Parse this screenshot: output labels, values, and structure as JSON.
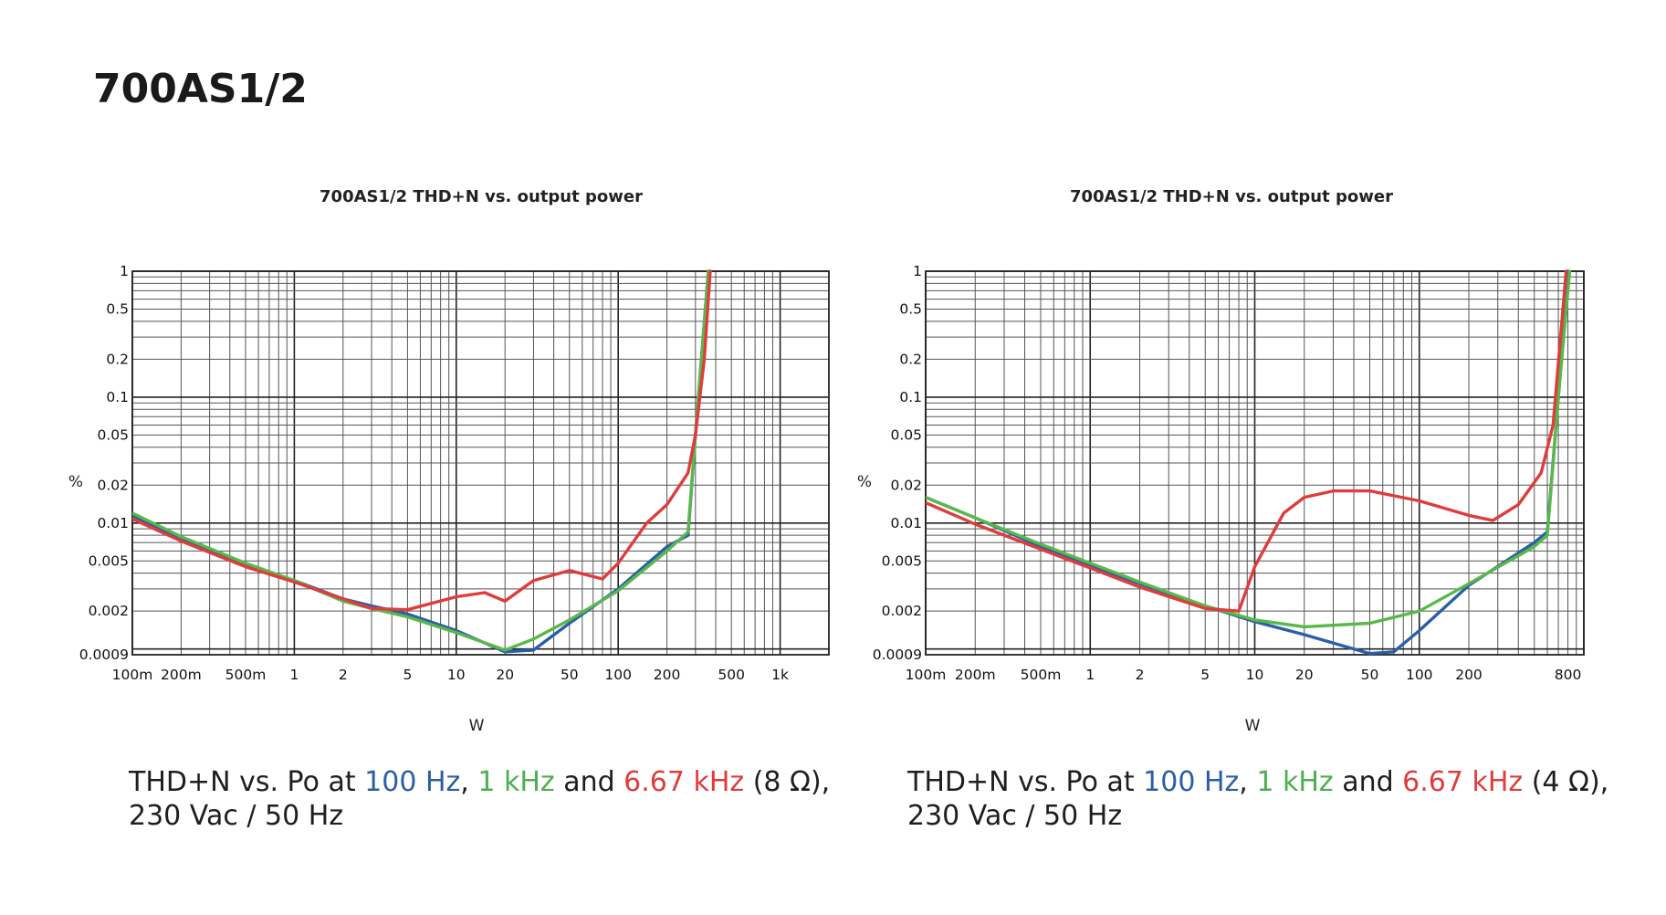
{
  "page": {
    "title": "700AS1/2",
    "colors": {
      "blue": "#2a5fa8",
      "green": "#5ab84a",
      "red": "#e03c3c"
    }
  },
  "captions": [
    {
      "prefix": "THD+N vs. Po at ",
      "blue": "100 Hz",
      "sep1": ", ",
      "green": "1 kHz",
      "sep2": " and ",
      "red": "6.67 kHz",
      "suffix": " (8 Ω),",
      "line2": "230 Vac / 50 Hz"
    },
    {
      "prefix": "THD+N vs. Po at ",
      "blue": "100 Hz",
      "sep1": ", ",
      "green": "1 kHz",
      "sep2": " and ",
      "red": "6.67 kHz",
      "suffix": " (4 Ω),",
      "line2": "230 Vac / 50 Hz"
    }
  ],
  "chart_data": [
    {
      "type": "line",
      "title": "700AS1/2 THD+N vs. output power",
      "xlabel": "W",
      "ylabel": "%",
      "x_scale": "log",
      "y_scale": "log",
      "xlim": [
        0.1,
        2000
      ],
      "ylim": [
        0.0009,
        1
      ],
      "grid": true,
      "x_ticks": [
        {
          "v": 0.1,
          "label": "100m"
        },
        {
          "v": 0.2,
          "label": "200m"
        },
        {
          "v": 0.5,
          "label": "500m"
        },
        {
          "v": 1,
          "label": "1"
        },
        {
          "v": 2,
          "label": "2"
        },
        {
          "v": 5,
          "label": "5"
        },
        {
          "v": 10,
          "label": "10"
        },
        {
          "v": 20,
          "label": "20"
        },
        {
          "v": 50,
          "label": "50"
        },
        {
          "v": 100,
          "label": "100"
        },
        {
          "v": 200,
          "label": "200"
        },
        {
          "v": 500,
          "label": "500"
        },
        {
          "v": 1000,
          "label": "1k"
        }
      ],
      "y_ticks": [
        {
          "v": 1,
          "label": "1"
        },
        {
          "v": 0.5,
          "label": "0.5"
        },
        {
          "v": 0.2,
          "label": "0.2"
        },
        {
          "v": 0.1,
          "label": "0.1"
        },
        {
          "v": 0.05,
          "label": "0.05"
        },
        {
          "v": 0.02,
          "label": "0.02"
        },
        {
          "v": 0.01,
          "label": "0.01"
        },
        {
          "v": 0.005,
          "label": "0.005"
        },
        {
          "v": 0.002,
          "label": "0.002"
        },
        {
          "v": 0.0009,
          "label": "0.0009"
        }
      ],
      "series": [
        {
          "color": "blue",
          "points": [
            [
              0.1,
              0.0115
            ],
            [
              0.2,
              0.0075
            ],
            [
              0.5,
              0.0047
            ],
            [
              1,
              0.0035
            ],
            [
              2,
              0.0025
            ],
            [
              3,
              0.0022
            ],
            [
              5,
              0.0019
            ],
            [
              10,
              0.0014
            ],
            [
              20,
              0.00095
            ],
            [
              30,
              0.00098
            ],
            [
              50,
              0.0016
            ],
            [
              100,
              0.003
            ],
            [
              200,
              0.0065
            ],
            [
              270,
              0.008
            ],
            [
              300,
              0.05
            ],
            [
              360,
              1
            ]
          ]
        },
        {
          "color": "green",
          "points": [
            [
              0.1,
              0.012
            ],
            [
              0.2,
              0.0078
            ],
            [
              0.5,
              0.0048
            ],
            [
              1,
              0.0035
            ],
            [
              2,
              0.0024
            ],
            [
              3,
              0.0021
            ],
            [
              5,
              0.0018
            ],
            [
              10,
              0.00135
            ],
            [
              20,
              0.00098
            ],
            [
              30,
              0.0012
            ],
            [
              50,
              0.0017
            ],
            [
              100,
              0.0029
            ],
            [
              200,
              0.006
            ],
            [
              270,
              0.0085
            ],
            [
              300,
              0.05
            ],
            [
              360,
              1
            ]
          ]
        },
        {
          "color": "red",
          "points": [
            [
              0.1,
              0.0108
            ],
            [
              0.2,
              0.0072
            ],
            [
              0.5,
              0.0045
            ],
            [
              1,
              0.0034
            ],
            [
              2,
              0.0025
            ],
            [
              3,
              0.0021
            ],
            [
              5,
              0.00205
            ],
            [
              10,
              0.0026
            ],
            [
              15,
              0.0028
            ],
            [
              20,
              0.0024
            ],
            [
              30,
              0.0035
            ],
            [
              50,
              0.0042
            ],
            [
              80,
              0.0036
            ],
            [
              100,
              0.0048
            ],
            [
              150,
              0.01
            ],
            [
              200,
              0.014
            ],
            [
              270,
              0.025
            ],
            [
              300,
              0.05
            ],
            [
              340,
              0.2
            ],
            [
              370,
              1
            ]
          ]
        }
      ]
    },
    {
      "type": "line",
      "title": "700AS1/2 THD+N vs. output power",
      "xlabel": "W",
      "ylabel": "%",
      "x_scale": "log",
      "y_scale": "log",
      "xlim": [
        0.1,
        1000
      ],
      "ylim": [
        0.0009,
        1
      ],
      "grid": true,
      "x_ticks": [
        {
          "v": 0.1,
          "label": "100m"
        },
        {
          "v": 0.2,
          "label": "200m"
        },
        {
          "v": 0.5,
          "label": "500m"
        },
        {
          "v": 1,
          "label": "1"
        },
        {
          "v": 2,
          "label": "2"
        },
        {
          "v": 5,
          "label": "5"
        },
        {
          "v": 10,
          "label": "10"
        },
        {
          "v": 20,
          "label": "20"
        },
        {
          "v": 50,
          "label": "50"
        },
        {
          "v": 100,
          "label": "100"
        },
        {
          "v": 200,
          "label": "200"
        },
        {
          "v": 800,
          "label": "800"
        }
      ],
      "y_ticks": [
        {
          "v": 1,
          "label": "1"
        },
        {
          "v": 0.5,
          "label": "0.5"
        },
        {
          "v": 0.2,
          "label": "0.2"
        },
        {
          "v": 0.1,
          "label": "0.1"
        },
        {
          "v": 0.05,
          "label": "0.05"
        },
        {
          "v": 0.02,
          "label": "0.02"
        },
        {
          "v": 0.01,
          "label": "0.01"
        },
        {
          "v": 0.005,
          "label": "0.005"
        },
        {
          "v": 0.002,
          "label": "0.002"
        },
        {
          "v": 0.0009,
          "label": "0.0009"
        }
      ],
      "series": [
        {
          "color": "blue",
          "points": [
            [
              0.1,
              0.016
            ],
            [
              0.2,
              0.011
            ],
            [
              0.5,
              0.0065
            ],
            [
              1,
              0.0046
            ],
            [
              2,
              0.0033
            ],
            [
              5,
              0.0022
            ],
            [
              10,
              0.00165
            ],
            [
              20,
              0.0013
            ],
            [
              50,
              0.00092
            ],
            [
              70,
              0.00095
            ],
            [
              100,
              0.0014
            ],
            [
              200,
              0.0032
            ],
            [
              500,
              0.007
            ],
            [
              600,
              0.0085
            ],
            [
              700,
              0.1
            ],
            [
              800,
              1
            ]
          ]
        },
        {
          "color": "green",
          "points": [
            [
              0.1,
              0.016
            ],
            [
              0.2,
              0.011
            ],
            [
              0.5,
              0.0068
            ],
            [
              1,
              0.0048
            ],
            [
              2,
              0.0034
            ],
            [
              5,
              0.0022
            ],
            [
              10,
              0.0017
            ],
            [
              20,
              0.0015
            ],
            [
              50,
              0.0016
            ],
            [
              100,
              0.002
            ],
            [
              200,
              0.0033
            ],
            [
              500,
              0.0065
            ],
            [
              600,
              0.008
            ],
            [
              700,
              0.1
            ],
            [
              820,
              1
            ]
          ]
        },
        {
          "color": "red",
          "points": [
            [
              0.1,
              0.0145
            ],
            [
              0.2,
              0.0098
            ],
            [
              0.5,
              0.0062
            ],
            [
              1,
              0.0044
            ],
            [
              2,
              0.0031
            ],
            [
              5,
              0.0021
            ],
            [
              8,
              0.002
            ],
            [
              10,
              0.0045
            ],
            [
              15,
              0.012
            ],
            [
              20,
              0.016
            ],
            [
              30,
              0.018
            ],
            [
              50,
              0.018
            ],
            [
              100,
              0.015
            ],
            [
              200,
              0.0115
            ],
            [
              280,
              0.0105
            ],
            [
              400,
              0.014
            ],
            [
              550,
              0.025
            ],
            [
              650,
              0.06
            ],
            [
              780,
              1
            ]
          ]
        }
      ]
    }
  ]
}
